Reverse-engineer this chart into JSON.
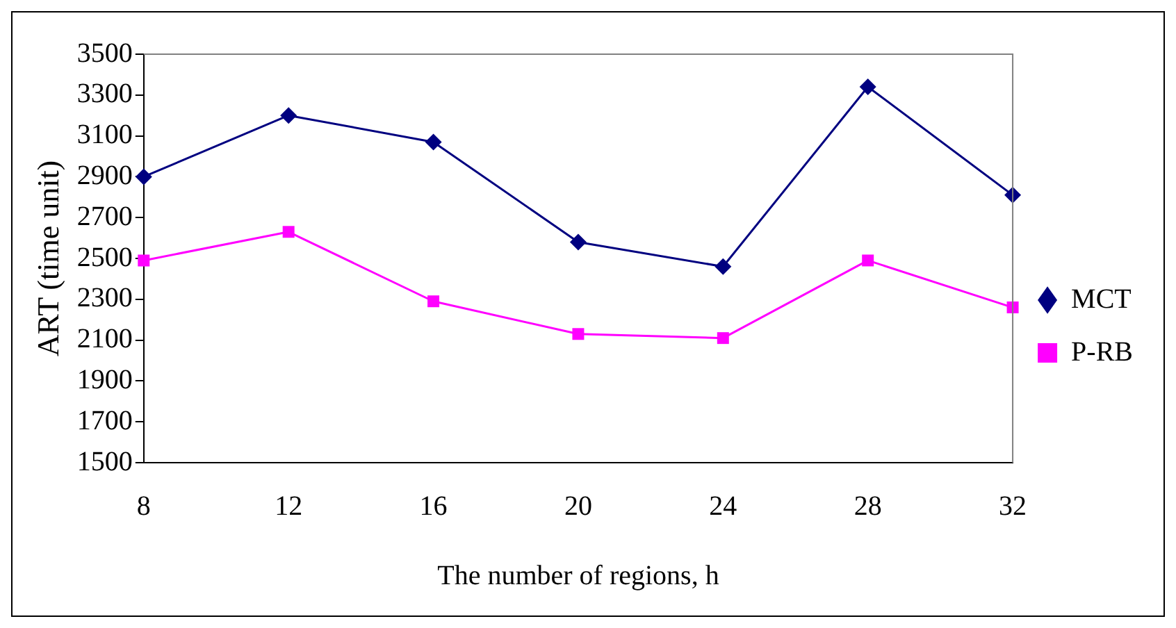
{
  "chart_data": {
    "type": "line",
    "xlabel": "The number of regions, h",
    "ylabel": "ART (time unit)",
    "categories": [
      "8",
      "12",
      "16",
      "20",
      "24",
      "28",
      "32"
    ],
    "series": [
      {
        "name": "MCT",
        "color": "#000080",
        "marker": "diamond",
        "values": [
          2900,
          3200,
          3070,
          2580,
          2460,
          3340,
          2810
        ]
      },
      {
        "name": "P-RB",
        "color": "#ff00ff",
        "marker": "square",
        "values": [
          2490,
          2630,
          2290,
          2130,
          2110,
          2490,
          2260
        ]
      }
    ],
    "ylim": [
      1500,
      3500
    ],
    "yticks": [
      1500,
      1700,
      1900,
      2100,
      2300,
      2500,
      2700,
      2900,
      3100,
      3300,
      3500
    ],
    "grid": false,
    "legend": "right"
  }
}
